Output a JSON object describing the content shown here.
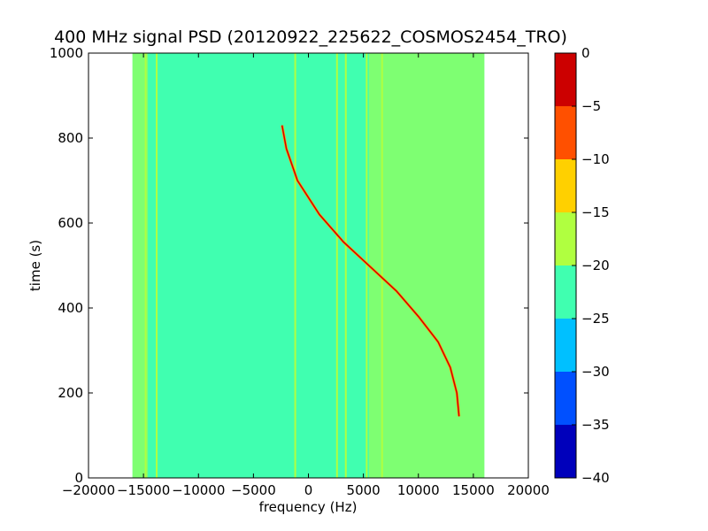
{
  "chart_data": {
    "type": "heatmap",
    "title": "400 MHz signal PSD (20120922_225622_COSMOS2454_TRO)",
    "xlabel": "frequency (Hz)",
    "ylabel": "time (s)",
    "xlim": [
      -20000,
      20000
    ],
    "ylim": [
      0,
      1000
    ],
    "x_ticks": [
      -20000,
      -15000,
      -10000,
      -5000,
      0,
      5000,
      10000,
      15000,
      20000
    ],
    "x_tick_labels": [
      "−20000",
      "−15000",
      "−10000",
      "−5000",
      "0",
      "5000",
      "10000",
      "15000",
      "20000"
    ],
    "y_ticks": [
      0,
      200,
      400,
      600,
      800,
      1000
    ],
    "y_tick_labels": [
      "0",
      "200",
      "400",
      "600",
      "800",
      "1000"
    ],
    "data_extent_x": [
      -16000,
      16000
    ],
    "background_level_db": -22,
    "edge_bands": [
      {
        "x_from": -16000,
        "x_to": -14600,
        "level_db": -18
      },
      {
        "x_from": 5500,
        "x_to": 16000,
        "level_db": -19
      }
    ],
    "vertical_lines": [
      {
        "x": -14800,
        "level_db": -18
      },
      {
        "x": -13800,
        "level_db": -18
      },
      {
        "x": -1200,
        "level_db": -18
      },
      {
        "x": 2600,
        "level_db": -18
      },
      {
        "x": 3400,
        "level_db": -18
      },
      {
        "x": 5300,
        "level_db": -17
      },
      {
        "x": 6700,
        "level_db": -18
      }
    ],
    "doppler_curve": {
      "level_db": -4,
      "points": [
        {
          "x": -2400,
          "y": 830
        },
        {
          "x": -2000,
          "y": 775
        },
        {
          "x": -1000,
          "y": 700
        },
        {
          "x": 1000,
          "y": 620
        },
        {
          "x": 3200,
          "y": 555
        },
        {
          "x": 5500,
          "y": 500
        },
        {
          "x": 8000,
          "y": 440
        },
        {
          "x": 10000,
          "y": 380
        },
        {
          "x": 11800,
          "y": 320
        },
        {
          "x": 12900,
          "y": 260
        },
        {
          "x": 13500,
          "y": 200
        },
        {
          "x": 13700,
          "y": 145
        }
      ]
    },
    "colorbar": {
      "range": [
        -40,
        0
      ],
      "ticks": [
        0,
        -5,
        -10,
        -15,
        -20,
        -25,
        -30,
        -35,
        -40
      ],
      "tick_labels": [
        "0",
        "−5",
        "−10",
        "−15",
        "−20",
        "−25",
        "−30",
        "−35",
        "−40"
      ],
      "levels": [
        {
          "from": -40,
          "to": -35,
          "color": "#0000bb"
        },
        {
          "from": -35,
          "to": -30,
          "color": "#0050ff"
        },
        {
          "from": -30,
          "to": -25,
          "color": "#00c0ff"
        },
        {
          "from": -25,
          "to": -20,
          "color": "#40ffb0"
        },
        {
          "from": -20,
          "to": -15,
          "color": "#b0ff40"
        },
        {
          "from": -15,
          "to": -10,
          "color": "#ffd000"
        },
        {
          "from": -10,
          "to": -5,
          "color": "#ff5000"
        },
        {
          "from": -5,
          "to": 0,
          "color": "#cc0000"
        }
      ]
    }
  }
}
